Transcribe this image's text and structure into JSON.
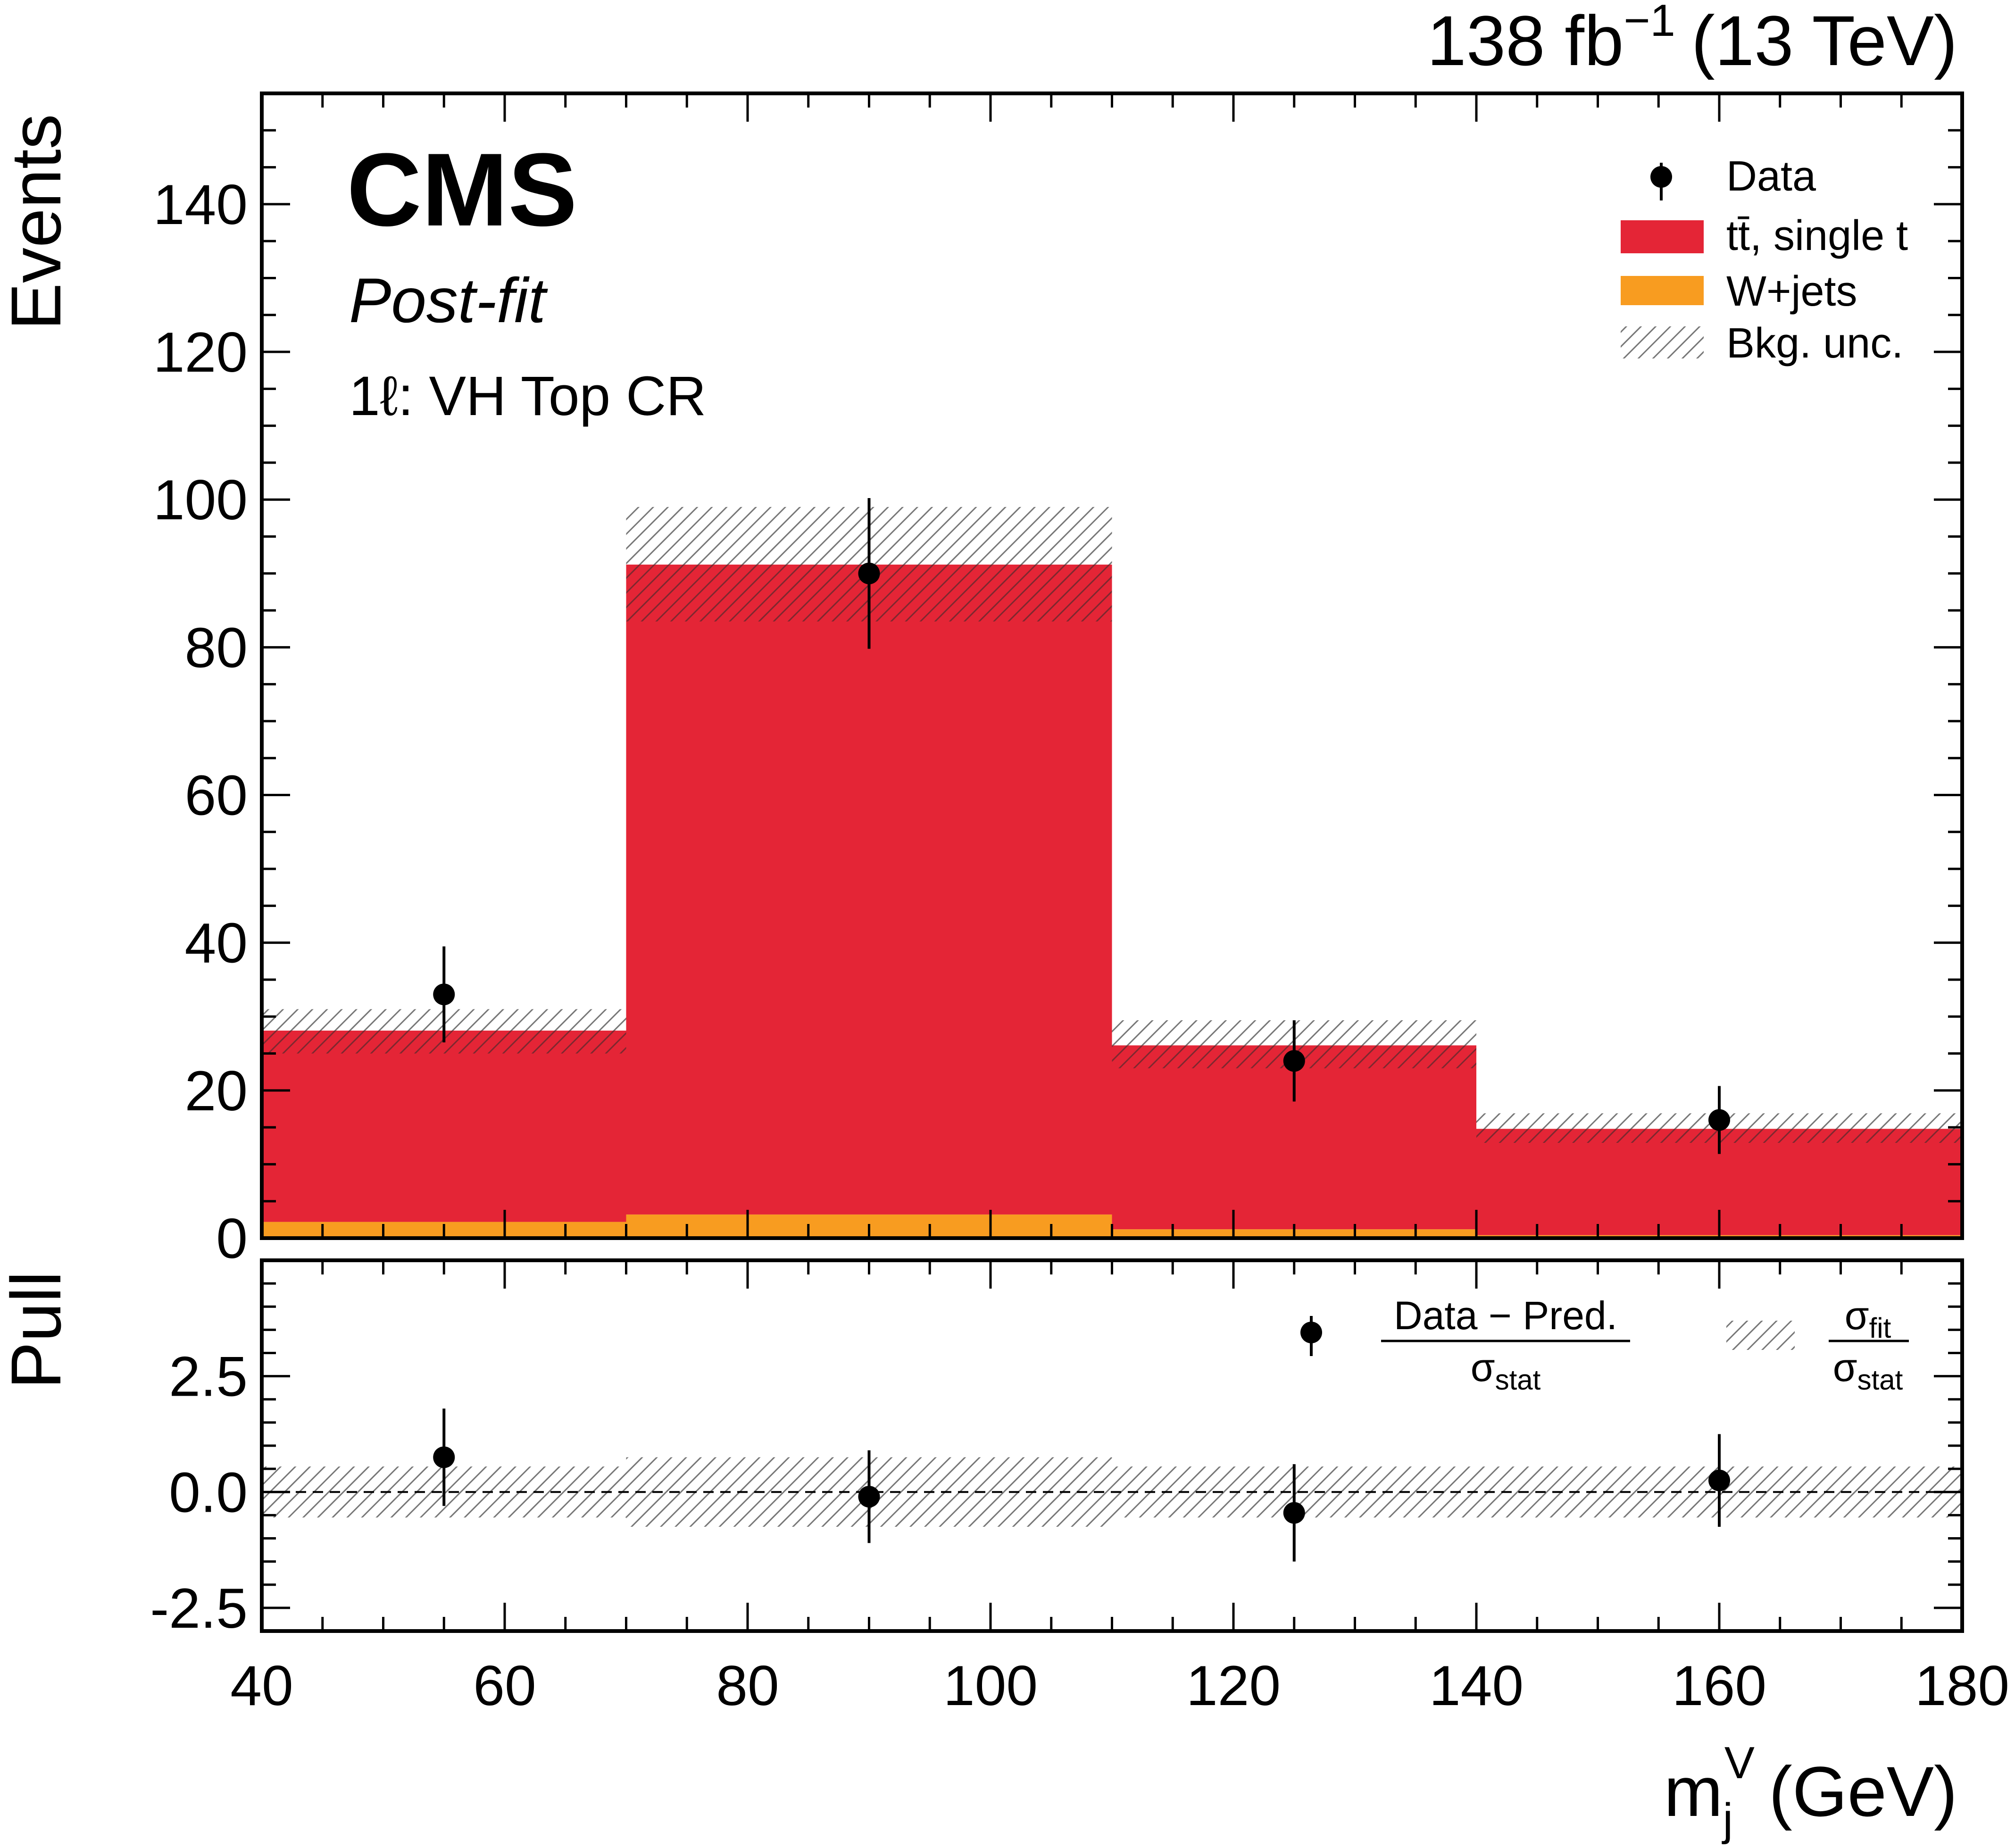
{
  "header": {
    "lumi_value": "138 fb",
    "lumi_exp": "−1",
    "energy": "(13 TeV)"
  },
  "labels": {
    "cms": "CMS",
    "postfit": "Post-fit",
    "region": "1ℓ: VH Top CR"
  },
  "chart_data": [
    {
      "type": "bar",
      "stacked": true,
      "ylabel": "Events",
      "ylim": [
        0,
        155
      ],
      "bin_edges": [
        40,
        70,
        110,
        140,
        180
      ],
      "series": [
        {
          "name": "W+jets",
          "color": "#f89c20",
          "values": [
            2.2,
            3.2,
            1.2,
            0.4
          ]
        },
        {
          "name": "tt̄, single t",
          "color": "#e42536",
          "values": [
            25.9,
            88.0,
            24.9,
            14.4
          ]
        }
      ],
      "total_prediction": [
        28.1,
        91.2,
        26.1,
        14.8
      ],
      "bkg_unc": {
        "name": "Bkg. unc.",
        "low": [
          25.0,
          83.5,
          23.0,
          12.9
        ],
        "high": [
          31.0,
          99.0,
          29.5,
          16.9
        ]
      },
      "data": {
        "name": "Data",
        "x": [
          55,
          90,
          125,
          160
        ],
        "y": [
          33,
          90,
          24,
          16
        ],
        "err": [
          6.5,
          10.2,
          5.5,
          4.6
        ]
      },
      "yticks": [
        "0",
        "20",
        "40",
        "60",
        "80",
        "100",
        "120",
        "140"
      ],
      "legend": [
        "Data",
        "tt̄, single t",
        "W+jets",
        "Bkg. unc."
      ],
      "legend_position": "top-right"
    },
    {
      "type": "scatter",
      "ylabel": "Pull",
      "xlabel": "m",
      "xlabel_sub": "j",
      "xlabel_sup": "V",
      "xlabel_unit": "(GeV)",
      "xlim": [
        40,
        180
      ],
      "ylim": [
        -3.0,
        5.0
      ],
      "xticks": [
        "40",
        "60",
        "80",
        "100",
        "120",
        "140",
        "160",
        "180"
      ],
      "yticks": [
        "-2.5",
        "0.0",
        "2.5"
      ],
      "pull": {
        "x": [
          55,
          90,
          125,
          160
        ],
        "y": [
          0.75,
          -0.1,
          -0.45,
          0.25
        ],
        "err": [
          1.05,
          1.0,
          1.05,
          1.0
        ]
      },
      "sigma_band": {
        "bin_edges": [
          40,
          70,
          110,
          140,
          180
        ],
        "half_width": [
          0.55,
          0.75,
          0.55,
          0.55
        ]
      },
      "reference_line": 0.0,
      "legend": {
        "pull_numerator": "Data − Pred.",
        "pull_denominator": "σ",
        "pull_denominator_sub": "stat",
        "band_numerator": "σ",
        "band_numerator_sub": "fit",
        "band_denominator": "σ",
        "band_denominator_sub": "stat"
      }
    }
  ]
}
